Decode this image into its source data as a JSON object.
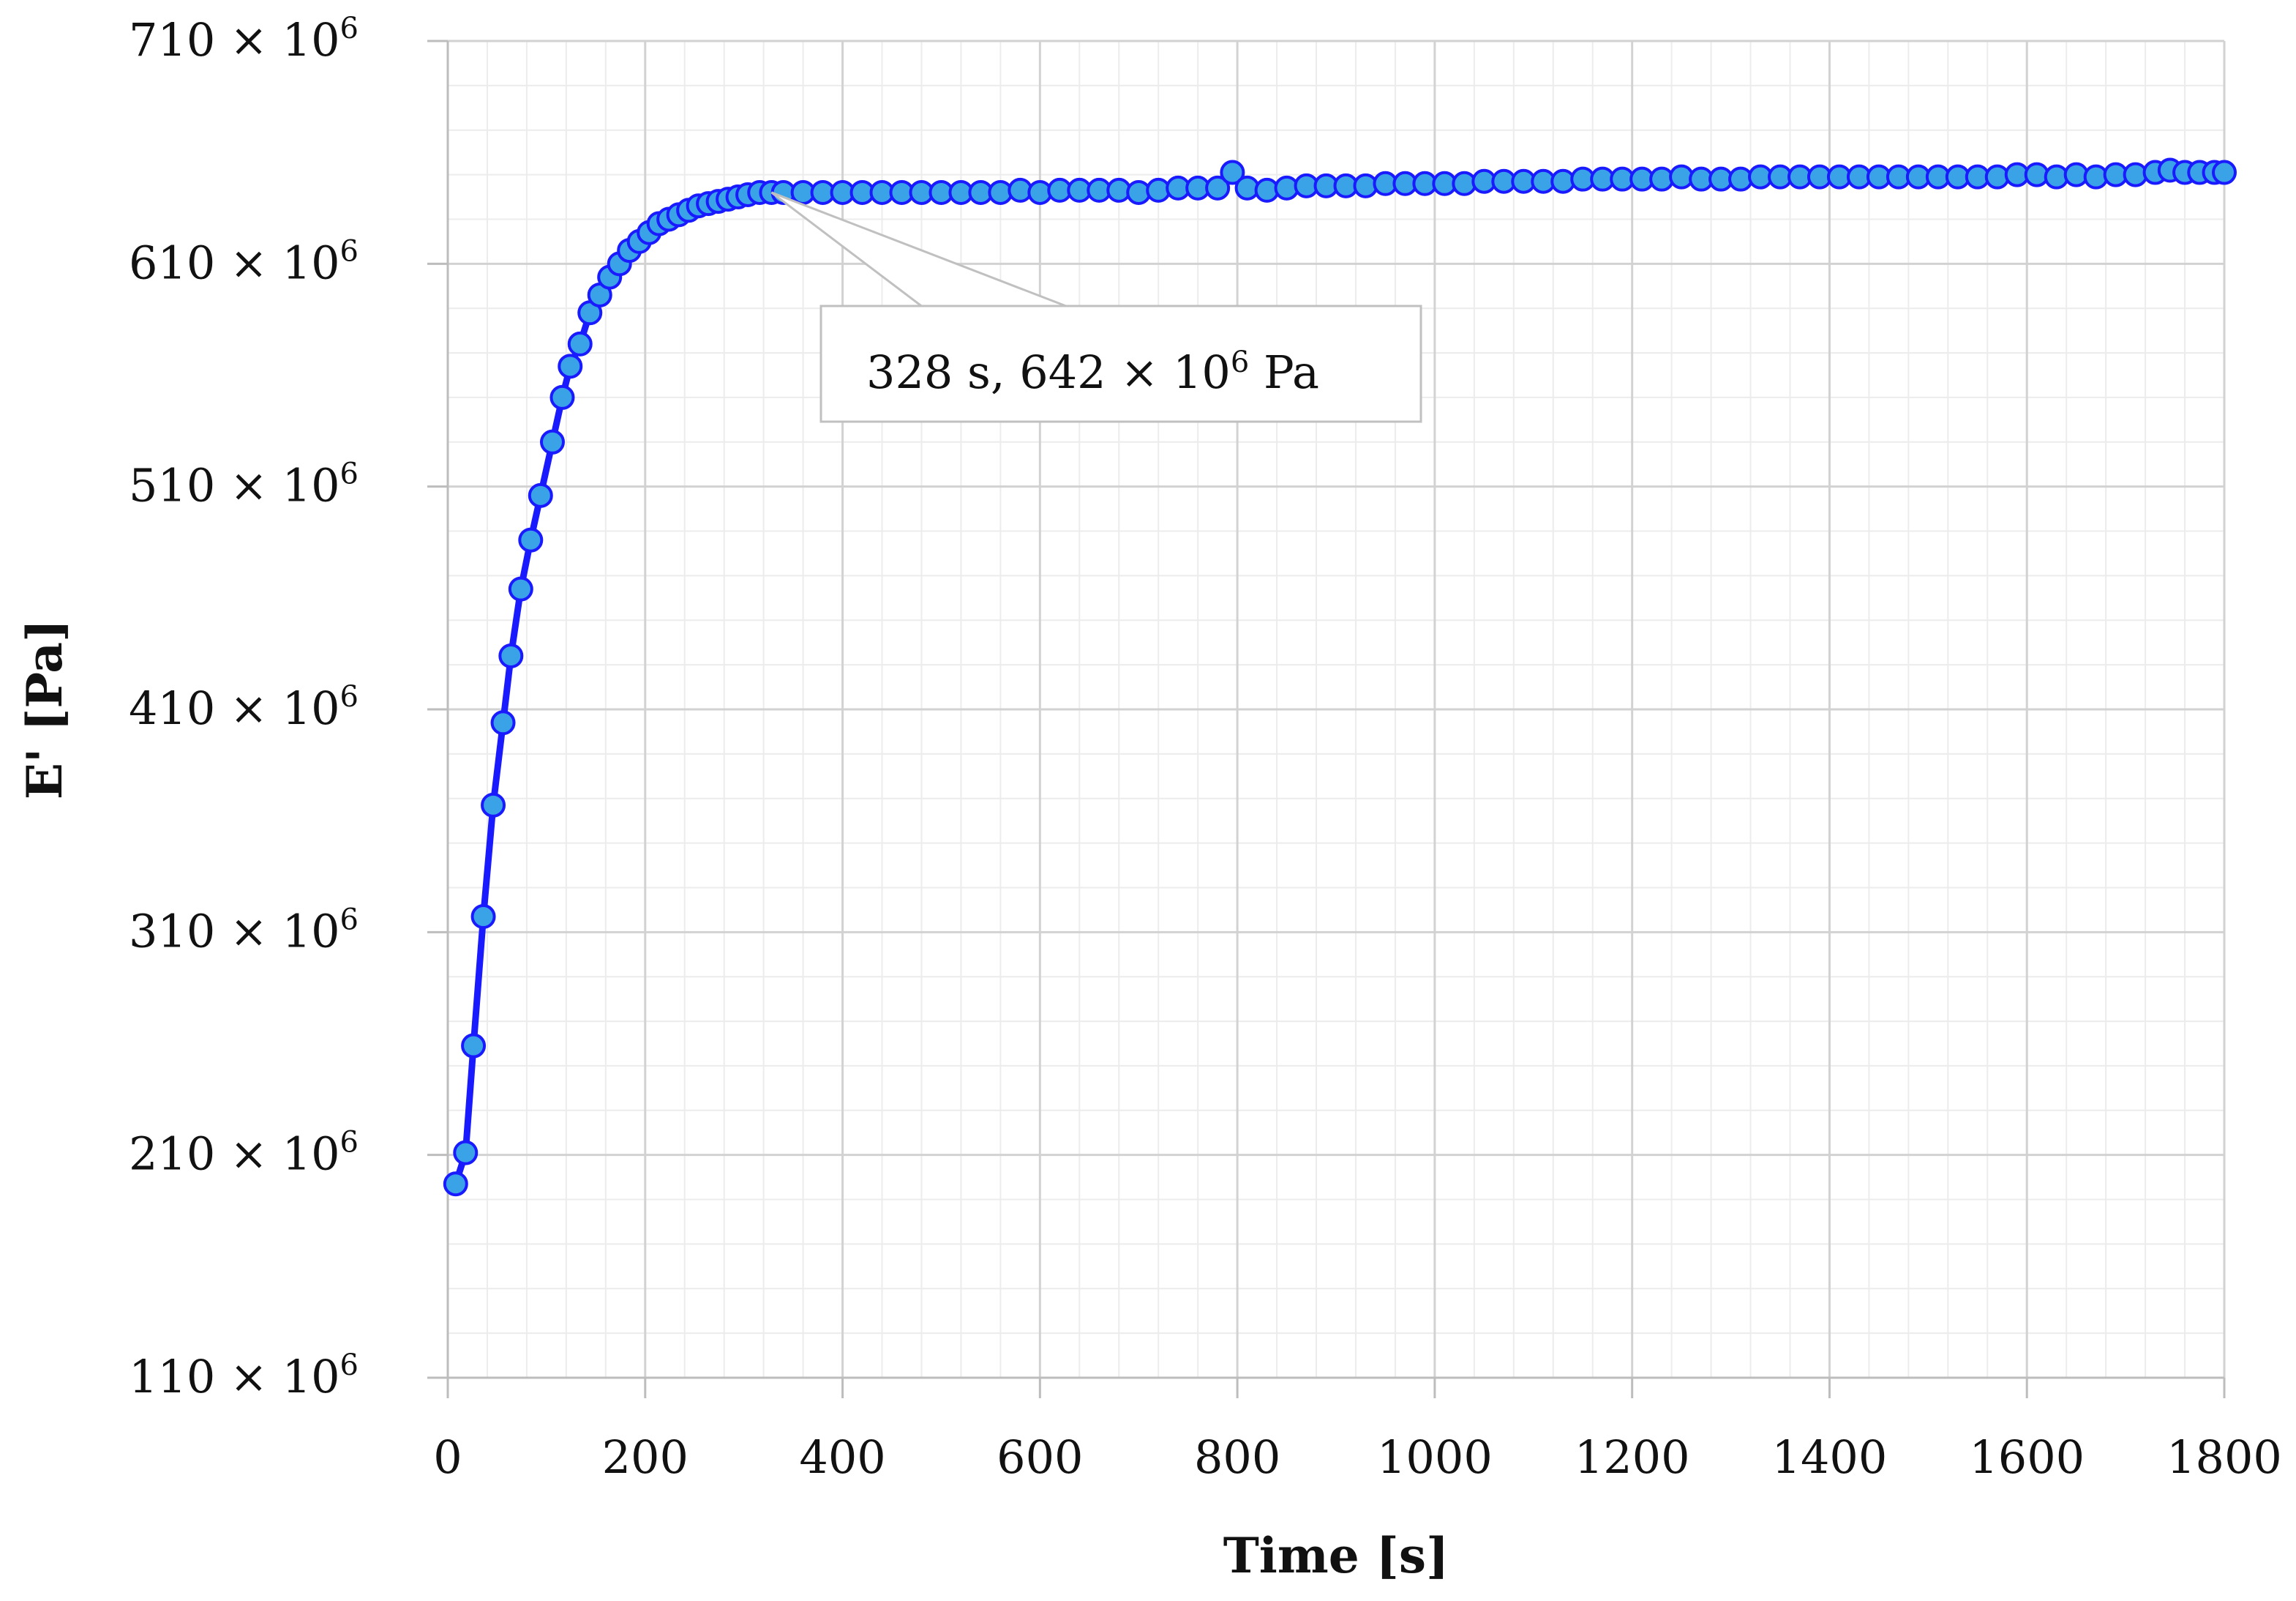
{
  "chart_data": {
    "type": "line",
    "title": "",
    "xlabel": "Time [s]",
    "ylabel": "E' [Pa]",
    "xlim": [
      0,
      1800
    ],
    "ylim": [
      110,
      710
    ],
    "y_unit_multiplier": "× 10^6",
    "grid": "major and minor",
    "x_ticks": [
      {
        "value": 0,
        "label": "0"
      },
      {
        "value": 200,
        "label": "200"
      },
      {
        "value": 400,
        "label": "400"
      },
      {
        "value": 600,
        "label": "600"
      },
      {
        "value": 800,
        "label": "800"
      },
      {
        "value": 1000,
        "label": "1000"
      },
      {
        "value": 1200,
        "label": "1200"
      },
      {
        "value": 1400,
        "label": "1400"
      },
      {
        "value": 1600,
        "label": "1600"
      },
      {
        "value": 1800,
        "label": "1800"
      }
    ],
    "y_ticks": [
      {
        "value": 110,
        "base": "110 × 10",
        "exp": "6"
      },
      {
        "value": 210,
        "base": "210 × 10",
        "exp": "6"
      },
      {
        "value": 310,
        "base": "310 × 10",
        "exp": "6"
      },
      {
        "value": 410,
        "base": "410 × 10",
        "exp": "6"
      },
      {
        "value": 510,
        "base": "510 × 10",
        "exp": "6"
      },
      {
        "value": 610,
        "base": "610 × 10",
        "exp": "6"
      },
      {
        "value": 710,
        "base": "710 × 10",
        "exp": "6"
      }
    ],
    "series": [
      {
        "color": "#1a1aff",
        "marker_fill": "#3aa3e8",
        "marker_edge": "#1a1aff",
        "points": [
          [
            8,
            197
          ],
          [
            18,
            211
          ],
          [
            26,
            259
          ],
          [
            36,
            317
          ],
          [
            46,
            367
          ],
          [
            56,
            404
          ],
          [
            64,
            434
          ],
          [
            74,
            464
          ],
          [
            84,
            486
          ],
          [
            94,
            506
          ],
          [
            106,
            530
          ],
          [
            116,
            550
          ],
          [
            124,
            564
          ],
          [
            134,
            574
          ],
          [
            144,
            588
          ],
          [
            154,
            596
          ],
          [
            164,
            604
          ],
          [
            174,
            610
          ],
          [
            184,
            616
          ],
          [
            194,
            620
          ],
          [
            204,
            624
          ],
          [
            214,
            628
          ],
          [
            224,
            630
          ],
          [
            234,
            632
          ],
          [
            244,
            634
          ],
          [
            254,
            636
          ],
          [
            264,
            637
          ],
          [
            274,
            638
          ],
          [
            284,
            639
          ],
          [
            294,
            640
          ],
          [
            304,
            641
          ],
          [
            316,
            642
          ],
          [
            328,
            642
          ],
          [
            340,
            642
          ],
          [
            360,
            642
          ],
          [
            380,
            642
          ],
          [
            400,
            642
          ],
          [
            420,
            642
          ],
          [
            440,
            642
          ],
          [
            460,
            642
          ],
          [
            480,
            642
          ],
          [
            500,
            642
          ],
          [
            520,
            642
          ],
          [
            540,
            642
          ],
          [
            560,
            642
          ],
          [
            580,
            643
          ],
          [
            600,
            642
          ],
          [
            620,
            643
          ],
          [
            640,
            643
          ],
          [
            660,
            643
          ],
          [
            680,
            643
          ],
          [
            700,
            642
          ],
          [
            720,
            643
          ],
          [
            740,
            644
          ],
          [
            760,
            644
          ],
          [
            780,
            644
          ],
          [
            795,
            651
          ],
          [
            810,
            644
          ],
          [
            830,
            643
          ],
          [
            850,
            644
          ],
          [
            870,
            645
          ],
          [
            890,
            645
          ],
          [
            910,
            645
          ],
          [
            930,
            645
          ],
          [
            950,
            646
          ],
          [
            970,
            646
          ],
          [
            990,
            646
          ],
          [
            1010,
            646
          ],
          [
            1030,
            646
          ],
          [
            1050,
            647
          ],
          [
            1070,
            647
          ],
          [
            1090,
            647
          ],
          [
            1110,
            647
          ],
          [
            1130,
            647
          ],
          [
            1150,
            648
          ],
          [
            1170,
            648
          ],
          [
            1190,
            648
          ],
          [
            1210,
            648
          ],
          [
            1230,
            648
          ],
          [
            1250,
            649
          ],
          [
            1270,
            648
          ],
          [
            1290,
            648
          ],
          [
            1310,
            648
          ],
          [
            1330,
            649
          ],
          [
            1350,
            649
          ],
          [
            1370,
            649
          ],
          [
            1390,
            649
          ],
          [
            1410,
            649
          ],
          [
            1430,
            649
          ],
          [
            1450,
            649
          ],
          [
            1470,
            649
          ],
          [
            1490,
            649
          ],
          [
            1510,
            649
          ],
          [
            1530,
            649
          ],
          [
            1550,
            649
          ],
          [
            1570,
            649
          ],
          [
            1590,
            650
          ],
          [
            1610,
            650
          ],
          [
            1630,
            649
          ],
          [
            1650,
            650
          ],
          [
            1670,
            649
          ],
          [
            1690,
            650
          ],
          [
            1710,
            650
          ],
          [
            1730,
            651
          ],
          [
            1745,
            652
          ],
          [
            1760,
            651
          ],
          [
            1775,
            651
          ],
          [
            1790,
            651
          ],
          [
            1800,
            651
          ]
        ]
      }
    ],
    "annotation": {
      "x": 328,
      "y": 642,
      "text_before": "328 s, 642 × 10",
      "exp": "6",
      "text_after": " Pa"
    }
  }
}
